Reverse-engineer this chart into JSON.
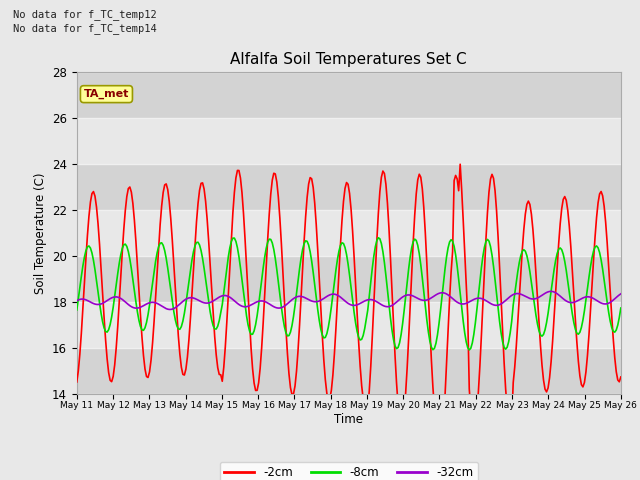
{
  "title": "Alfalfa Soil Temperatures Set C",
  "ylabel": "Soil Temperature (C)",
  "xlabel": "Time",
  "no_data_texts": [
    "No data for f_TC_temp12",
    "No data for f_TC_temp14"
  ],
  "ta_met_label": "TA_met",
  "ylim": [
    14,
    28
  ],
  "yticks": [
    14,
    16,
    18,
    20,
    22,
    24,
    26,
    28
  ],
  "xtick_labels": [
    "May 11",
    "May 12",
    "May 13",
    "May 14",
    "May 15",
    "May 16",
    "May 17",
    "May 18",
    "May 19",
    "May 20",
    "May 21",
    "May 22",
    "May 23",
    "May 24",
    "May 25",
    "May 26"
  ],
  "line_colors": {
    "2cm": "#ff0000",
    "8cm": "#00dd00",
    "32cm": "#9900cc"
  },
  "legend_labels": [
    "-2cm",
    "-8cm",
    "-32cm"
  ],
  "legend_colors": [
    "#ff0000",
    "#00dd00",
    "#9900cc"
  ],
  "fig_bg_color": "#e8e8e8",
  "plot_bg_color": "#d3d3d3",
  "grid_color": "#f0f0f0",
  "band_light": "#e8e8e8",
  "band_dark": "#d3d3d3",
  "ta_met_bg": "#ffff99",
  "ta_met_fg": "#880000",
  "ta_met_border": "#999900",
  "no_data_color": "#222222"
}
